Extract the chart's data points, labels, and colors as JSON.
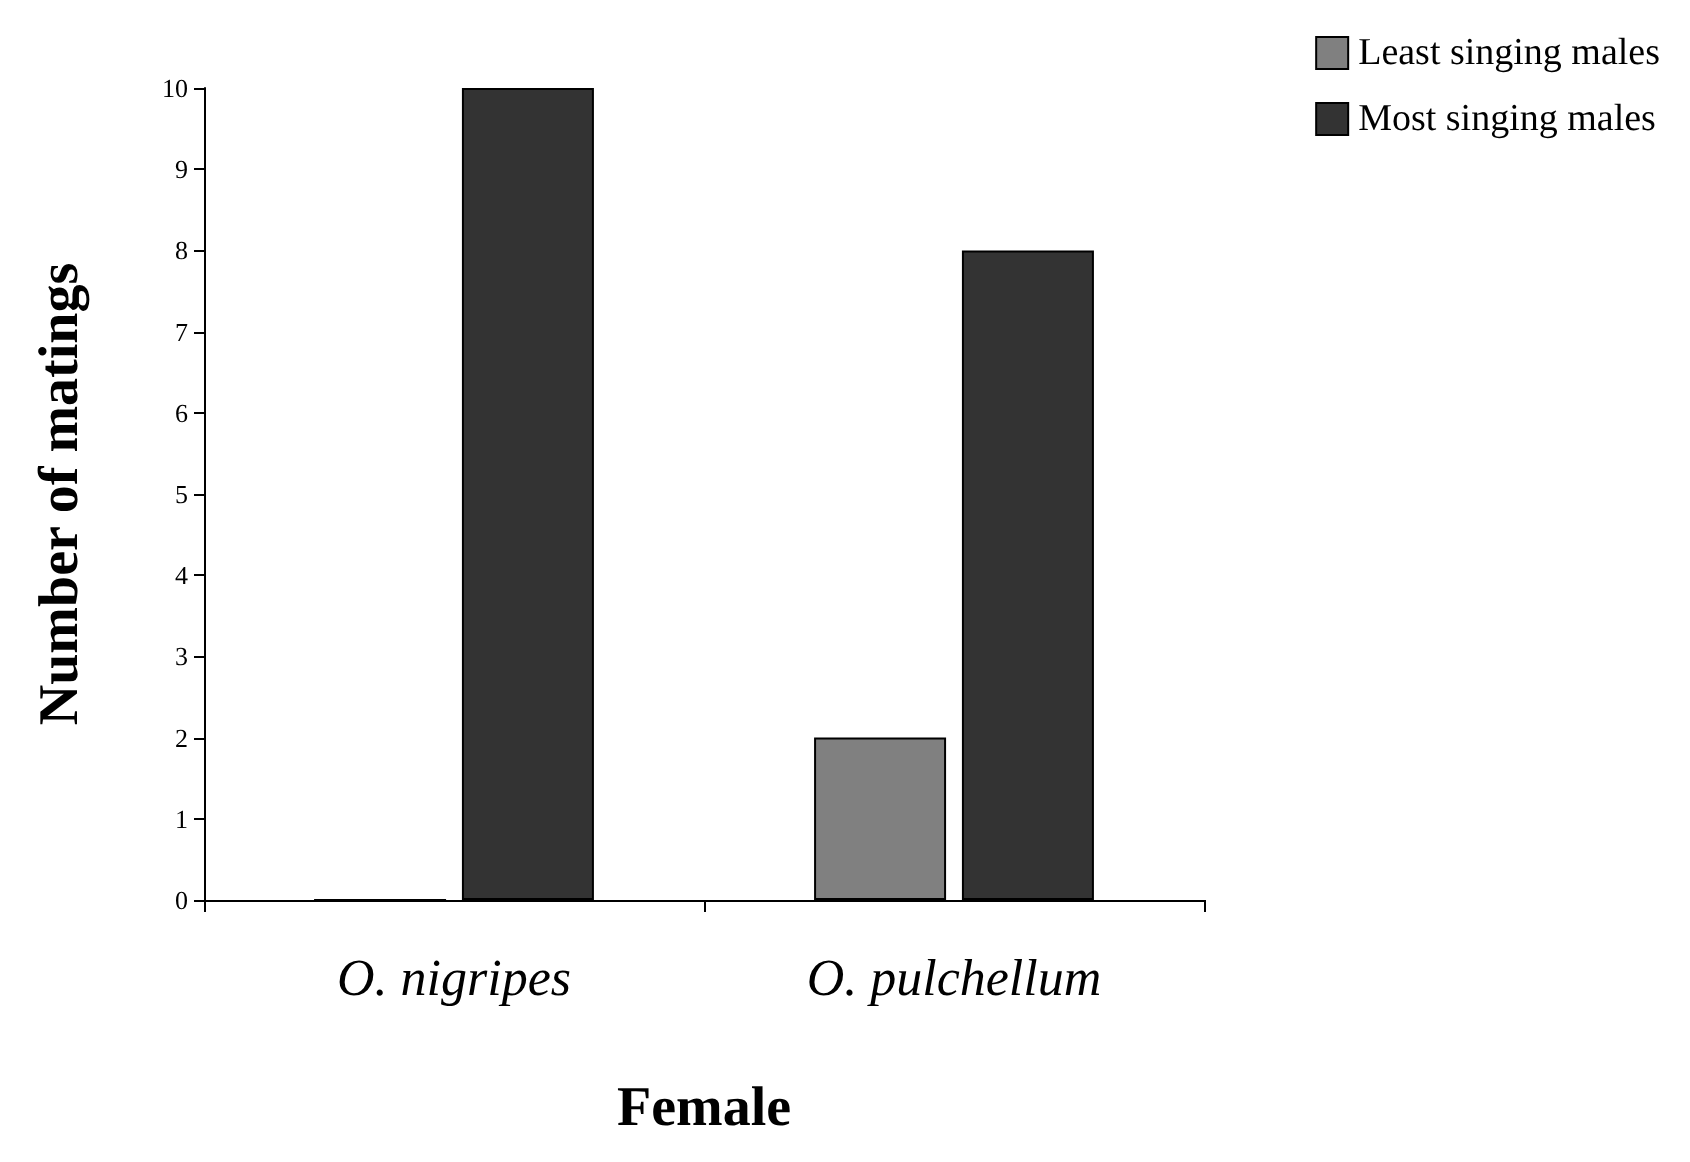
{
  "chart_data": {
    "type": "bar",
    "xlabel": "Female",
    "ylabel": "Number of matings",
    "categories": [
      "O. nigripes",
      "O. pulchellum"
    ],
    "series": [
      {
        "name": "Least singing males",
        "color": "#808080",
        "values": [
          0,
          2
        ]
      },
      {
        "name": "Most singing males",
        "color": "#333333",
        "values": [
          10,
          8
        ]
      }
    ],
    "ylim": [
      0,
      10
    ],
    "yticks": [
      0,
      1,
      2,
      3,
      4,
      5,
      6,
      7,
      8,
      9,
      10
    ],
    "grid": false,
    "legend": "top right"
  }
}
